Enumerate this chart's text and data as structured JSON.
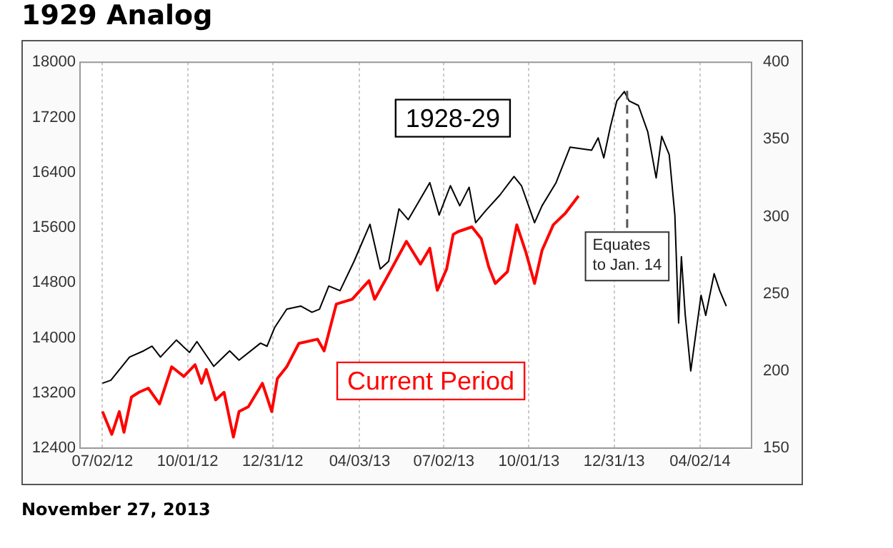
{
  "chart_data": {
    "type": "line",
    "title": "1929 Analog",
    "annotations": [
      "November 27, 2013"
    ],
    "xlim": [
      "2012-06-08",
      "2014-05-27"
    ],
    "xticks": [
      {
        "value": "2012-07-02",
        "label": "07/02/12"
      },
      {
        "value": "2012-10-01",
        "label": "10/01/12"
      },
      {
        "value": "2012-12-31",
        "label": "12/31/12"
      },
      {
        "value": "2013-04-03",
        "label": "04/03/13"
      },
      {
        "value": "2013-07-02",
        "label": "07/02/13"
      },
      {
        "value": "2013-10-01",
        "label": "10/01/13"
      },
      {
        "value": "2013-12-31",
        "label": "12/31/13"
      },
      {
        "value": "2014-04-02",
        "label": "04/02/14"
      }
    ],
    "ylim": [
      12400,
      18000
    ],
    "yticks": [
      12400,
      13200,
      14000,
      14800,
      15600,
      16400,
      17200,
      18000
    ],
    "y2lim": [
      150,
      400
    ],
    "y2ticks": [
      150,
      200,
      250,
      300,
      350,
      400
    ],
    "grid": "x",
    "legend": false,
    "marker": "none",
    "line_style": "solid",
    "ref_lines": [
      {
        "axis": "x",
        "value": "2014-01-14",
        "label": "Equates to Jan. 14",
        "color": "#555555",
        "line_style": "dashed"
      }
    ],
    "series": [
      {
        "name": "1928-29",
        "color": "#000000",
        "axis": "y2",
        "x": [
          "2012-07-02",
          "2012-07-11",
          "2012-07-31",
          "2012-08-15",
          "2012-08-24",
          "2012-09-02",
          "2012-09-19",
          "2012-10-03",
          "2012-10-11",
          "2012-10-29",
          "2012-11-15",
          "2012-11-25",
          "2012-12-18",
          "2012-12-25",
          "2013-01-02",
          "2013-01-15",
          "2013-01-30",
          "2013-02-11",
          "2013-02-19",
          "2013-03-01",
          "2013-03-13",
          "2013-03-28",
          "2013-04-14",
          "2013-04-25",
          "2013-05-04",
          "2013-05-15",
          "2013-05-25",
          "2013-06-17",
          "2013-06-27",
          "2013-07-09",
          "2013-07-19",
          "2013-07-29",
          "2013-08-05",
          "2013-08-16",
          "2013-08-31",
          "2013-09-15",
          "2013-09-23",
          "2013-10-07",
          "2013-10-15",
          "2013-10-30",
          "2013-11-14",
          "2013-12-07",
          "2013-12-14",
          "2013-12-20",
          "2013-12-27",
          "2014-01-03",
          "2014-01-11",
          "2014-01-16",
          "2014-01-26",
          "2014-02-05",
          "2014-02-14",
          "2014-02-20",
          "2014-02-28",
          "2014-03-06",
          "2014-03-10",
          "2014-03-13",
          "2014-03-17",
          "2014-03-23",
          "2014-04-03",
          "2014-04-08",
          "2014-04-17",
          "2014-04-23",
          "2014-04-30"
        ],
        "values": [
          192,
          194,
          209,
          213,
          216,
          209,
          220,
          212,
          219,
          203,
          213,
          207,
          218,
          216,
          228,
          240,
          242,
          238,
          240,
          255,
          252,
          271,
          295,
          266,
          271,
          305,
          298,
          322,
          301,
          320,
          307,
          319,
          296,
          304,
          314,
          326,
          320,
          296,
          307,
          322,
          345,
          343,
          351,
          338,
          358,
          375,
          381,
          375,
          372,
          355,
          325,
          352,
          340,
          301,
          231,
          274,
          237,
          200,
          249,
          236,
          263,
          252,
          242
        ]
      },
      {
        "name": "Current Period",
        "color": "#ff0000",
        "x": [
          "2012-07-02",
          "2012-07-12",
          "2012-07-20",
          "2012-07-25",
          "2012-08-02",
          "2012-08-10",
          "2012-08-20",
          "2012-09-01",
          "2012-09-14",
          "2012-09-27",
          "2012-10-09",
          "2012-10-16",
          "2012-10-21",
          "2012-10-31",
          "2012-11-09",
          "2012-11-19",
          "2012-11-25",
          "2012-12-05",
          "2012-12-20",
          "2012-12-30",
          "2013-01-05",
          "2013-01-15",
          "2013-01-28",
          "2013-02-17",
          "2013-02-24",
          "2013-03-09",
          "2013-03-26",
          "2013-04-13",
          "2013-04-19",
          "2013-05-03",
          "2013-05-23",
          "2013-06-07",
          "2013-06-17",
          "2013-06-25",
          "2013-07-05",
          "2013-07-12",
          "2013-07-17",
          "2013-08-01",
          "2013-08-11",
          "2013-08-19",
          "2013-08-26",
          "2013-09-08",
          "2013-09-18",
          "2013-09-28",
          "2013-10-07",
          "2013-10-15",
          "2013-10-27",
          "2013-11-09",
          "2013-11-23"
        ],
        "values": [
          12930,
          12600,
          12930,
          12630,
          13140,
          13210,
          13270,
          13040,
          13580,
          13440,
          13610,
          13340,
          13540,
          13100,
          13210,
          12560,
          12930,
          13000,
          13340,
          12930,
          13410,
          13580,
          13920,
          13980,
          13810,
          14490,
          14560,
          14830,
          14560,
          14900,
          15400,
          15070,
          15300,
          14690,
          15000,
          15500,
          15540,
          15610,
          15440,
          15030,
          14790,
          14960,
          15640,
          15230,
          14790,
          15270,
          15640,
          15810,
          16060
        ]
      }
    ]
  }
}
